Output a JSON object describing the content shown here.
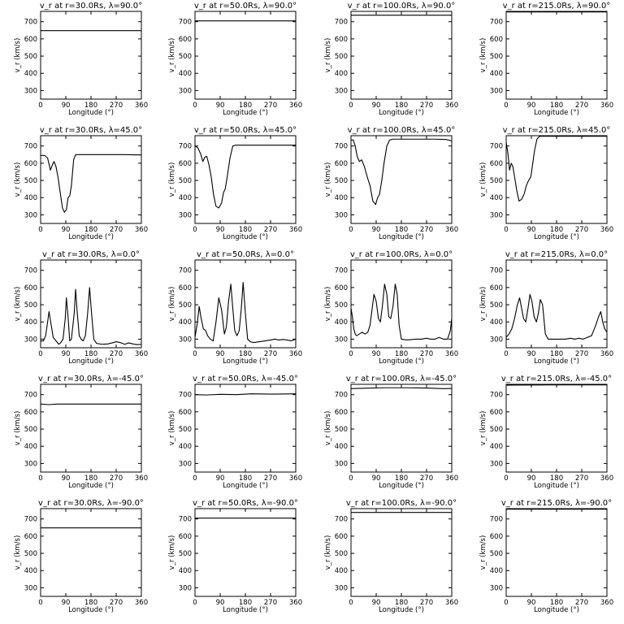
{
  "chart_data": [
    {
      "type": "line",
      "title": "v_r at r=30.0Rs,  λ=90.0°",
      "xlabel": "Longitude (°)",
      "ylabel": "v_r (km/s)",
      "xlim": [
        0,
        360
      ],
      "ylim": [
        250,
        760
      ],
      "xticks": [
        0,
        90,
        180,
        270,
        360
      ],
      "yticks": [
        300,
        400,
        500,
        600,
        700
      ],
      "series": [
        {
          "x": [
            0,
            360
          ],
          "y": [
            648,
            648
          ]
        }
      ]
    },
    {
      "type": "line",
      "title": "v_r at r=50.0Rs,  λ=90.0°",
      "xlabel": "Longitude (°)",
      "ylabel": "v_r (km/s)",
      "xlim": [
        0,
        360
      ],
      "ylim": [
        250,
        760
      ],
      "xticks": [
        0,
        90,
        180,
        270,
        360
      ],
      "yticks": [
        300,
        400,
        500,
        600,
        700
      ],
      "series": [
        {
          "x": [
            0,
            360
          ],
          "y": [
            705,
            705
          ]
        }
      ]
    },
    {
      "type": "line",
      "title": "v_r at r=100.0Rs,  λ=90.0°",
      "xlabel": "Longitude (°)",
      "ylabel": "v_r (km/s)",
      "xlim": [
        0,
        360
      ],
      "ylim": [
        250,
        760
      ],
      "xticks": [
        0,
        90,
        180,
        270,
        360
      ],
      "yticks": [
        300,
        400,
        500,
        600,
        700
      ],
      "series": [
        {
          "x": [
            0,
            360
          ],
          "y": [
            738,
            738
          ]
        }
      ]
    },
    {
      "type": "line",
      "title": "v_r at r=215.0Rs,  λ=90.0°",
      "xlabel": "Longitude (°)",
      "ylabel": "v_r (km/s)",
      "xlim": [
        0,
        360
      ],
      "ylim": [
        250,
        760
      ],
      "xticks": [
        0,
        90,
        180,
        270,
        360
      ],
      "yticks": [
        300,
        400,
        500,
        600,
        700
      ],
      "series": [
        {
          "x": [
            0,
            360
          ],
          "y": [
            757,
            757
          ]
        }
      ]
    },
    {
      "type": "line",
      "title": "v_r at r=30.0Rs,  λ=45.0°",
      "xlabel": "Longitude (°)",
      "ylabel": "v_r (km/s)",
      "xlim": [
        0,
        360
      ],
      "ylim": [
        250,
        760
      ],
      "xticks": [
        0,
        90,
        180,
        270,
        360
      ],
      "yticks": [
        300,
        400,
        500,
        600,
        700
      ],
      "series": [
        {
          "x": [
            0,
            15,
            25,
            35,
            42,
            48,
            55,
            62,
            70,
            78,
            85,
            92,
            98,
            104,
            110,
            118,
            125,
            135,
            150,
            200,
            300,
            360
          ],
          "y": [
            645,
            645,
            630,
            560,
            590,
            610,
            580,
            520,
            430,
            340,
            315,
            330,
            400,
            410,
            470,
            620,
            650,
            650,
            650,
            650,
            650,
            648
          ]
        }
      ]
    },
    {
      "type": "line",
      "title": "v_r at r=50.0Rs,  λ=45.0°",
      "xlabel": "Longitude (°)",
      "ylabel": "v_r (km/s)",
      "xlim": [
        0,
        360
      ],
      "ylim": [
        250,
        760
      ],
      "xticks": [
        0,
        90,
        180,
        270,
        360
      ],
      "yticks": [
        300,
        400,
        500,
        600,
        700
      ],
      "series": [
        {
          "x": [
            0,
            10,
            20,
            28,
            35,
            42,
            50,
            58,
            66,
            75,
            85,
            95,
            102,
            108,
            115,
            125,
            135,
            145,
            200,
            300,
            360
          ],
          "y": [
            700,
            690,
            655,
            610,
            635,
            640,
            590,
            520,
            420,
            350,
            340,
            370,
            430,
            450,
            520,
            630,
            700,
            705,
            705,
            705,
            705
          ]
        }
      ]
    },
    {
      "type": "line",
      "title": "v_r at r=100.0Rs,  λ=45.0°",
      "xlabel": "Longitude (°)",
      "ylabel": "v_r (km/s)",
      "xlim": [
        0,
        360
      ],
      "ylim": [
        250,
        760
      ],
      "xticks": [
        0,
        90,
        180,
        270,
        360
      ],
      "yticks": [
        300,
        400,
        500,
        600,
        700
      ],
      "series": [
        {
          "x": [
            0,
            8,
            15,
            22,
            30,
            38,
            48,
            58,
            68,
            78,
            88,
            95,
            102,
            110,
            118,
            128,
            138,
            150,
            200,
            300,
            340,
            360
          ],
          "y": [
            735,
            735,
            700,
            640,
            610,
            620,
            580,
            520,
            470,
            380,
            360,
            400,
            420,
            500,
            600,
            700,
            735,
            740,
            740,
            740,
            738,
            730
          ]
        }
      ]
    },
    {
      "type": "line",
      "title": "v_r at r=215.0Rs,  λ=45.0°",
      "xlabel": "Longitude (°)",
      "ylabel": "v_r (km/s)",
      "xlim": [
        0,
        360
      ],
      "ylim": [
        250,
        760
      ],
      "xticks": [
        0,
        90,
        180,
        270,
        360
      ],
      "yticks": [
        300,
        400,
        500,
        600,
        700
      ],
      "series": [
        {
          "x": [
            0,
            6,
            12,
            18,
            24,
            30,
            38,
            46,
            55,
            64,
            72,
            80,
            88,
            95,
            102,
            110,
            118,
            125,
            135,
            150,
            200,
            300,
            360
          ],
          "y": [
            720,
            660,
            560,
            600,
            580,
            520,
            440,
            380,
            390,
            420,
            470,
            500,
            520,
            600,
            680,
            740,
            755,
            757,
            757,
            757,
            757,
            757,
            757
          ]
        }
      ]
    },
    {
      "type": "line",
      "title": "v_r at r=30.0Rs,  λ=0.0°",
      "xlabel": "Longitude (°)",
      "ylabel": "v_r (km/s)",
      "xlim": [
        0,
        360
      ],
      "ylim": [
        250,
        760
      ],
      "xticks": [
        0,
        90,
        180,
        270,
        360
      ],
      "yticks": [
        300,
        400,
        500,
        600,
        700
      ],
      "series": [
        {
          "x": [
            0,
            10,
            18,
            25,
            30,
            38,
            45,
            55,
            65,
            72,
            80,
            88,
            92,
            98,
            104,
            110,
            120,
            125,
            130,
            138,
            145,
            152,
            160,
            168,
            175,
            182,
            190,
            200,
            220,
            240,
            255,
            270,
            285,
            300,
            315,
            330,
            345,
            360
          ],
          "y": [
            290,
            290,
            320,
            400,
            460,
            380,
            310,
            290,
            270,
            280,
            300,
            420,
            540,
            430,
            290,
            300,
            450,
            590,
            470,
            320,
            300,
            290,
            320,
            450,
            600,
            450,
            300,
            275,
            270,
            272,
            278,
            285,
            280,
            270,
            278,
            272,
            268,
            270
          ]
        }
      ]
    },
    {
      "type": "line",
      "title": "v_r at r=50.0Rs,  λ=0.0°",
      "xlabel": "Longitude (°)",
      "ylabel": "v_r (km/s)",
      "xlim": [
        0,
        360
      ],
      "ylim": [
        250,
        760
      ],
      "xticks": [
        0,
        90,
        180,
        270,
        360
      ],
      "yticks": [
        300,
        400,
        500,
        600,
        700
      ],
      "series": [
        {
          "x": [
            0,
            8,
            15,
            22,
            30,
            38,
            45,
            55,
            65,
            75,
            85,
            95,
            105,
            112,
            120,
            128,
            135,
            142,
            150,
            158,
            165,
            172,
            180,
            188,
            198,
            210,
            230,
            250,
            270,
            285,
            300,
            315,
            330,
            345,
            360
          ],
          "y": [
            310,
            390,
            490,
            420,
            360,
            350,
            320,
            300,
            290,
            400,
            540,
            470,
            330,
            370,
            520,
            620,
            480,
            350,
            320,
            350,
            470,
            630,
            450,
            300,
            285,
            280,
            285,
            290,
            295,
            300,
            295,
            298,
            295,
            290,
            300
          ]
        }
      ]
    },
    {
      "type": "line",
      "title": "v_r at r=100.0Rs,  λ=0.0°",
      "xlabel": "Longitude (°)",
      "ylabel": "v_r (km/s)",
      "xlim": [
        0,
        360
      ],
      "ylim": [
        250,
        760
      ],
      "xticks": [
        0,
        90,
        180,
        270,
        360
      ],
      "yticks": [
        300,
        400,
        500,
        600,
        700
      ],
      "series": [
        {
          "x": [
            0,
            5,
            10,
            15,
            20,
            30,
            40,
            50,
            60,
            68,
            75,
            82,
            90,
            98,
            105,
            112,
            120,
            128,
            135,
            142,
            150,
            158,
            165,
            172,
            180,
            200,
            230,
            250,
            270,
            285,
            300,
            315,
            330,
            345,
            355,
            360
          ],
          "y": [
            480,
            430,
            360,
            330,
            320,
            330,
            340,
            330,
            340,
            380,
            470,
            560,
            520,
            420,
            400,
            490,
            620,
            560,
            430,
            420,
            490,
            620,
            560,
            380,
            300,
            295,
            300,
            300,
            305,
            300,
            300,
            310,
            300,
            300,
            350,
            420
          ]
        }
      ]
    },
    {
      "type": "line",
      "title": "v_r at r=215.0Rs,  λ=0.0°",
      "xlabel": "Longitude (°)",
      "ylabel": "v_r (km/s)",
      "xlim": [
        0,
        360
      ],
      "ylim": [
        250,
        760
      ],
      "xticks": [
        0,
        90,
        180,
        270,
        360
      ],
      "yticks": [
        300,
        400,
        500,
        600,
        700
      ],
      "series": [
        {
          "x": [
            0,
            10,
            20,
            30,
            40,
            48,
            55,
            62,
            70,
            78,
            85,
            92,
            100,
            108,
            115,
            122,
            130,
            140,
            150,
            170,
            190,
            210,
            230,
            245,
            260,
            275,
            290,
            305,
            320,
            330,
            338,
            345,
            352,
            360
          ],
          "y": [
            310,
            330,
            360,
            420,
            500,
            540,
            480,
            420,
            400,
            480,
            560,
            520,
            430,
            400,
            450,
            530,
            500,
            330,
            300,
            300,
            300,
            300,
            305,
            300,
            305,
            300,
            310,
            320,
            380,
            430,
            460,
            400,
            360,
            340
          ]
        }
      ]
    },
    {
      "type": "line",
      "title": "v_r at r=30.0Rs,  λ=-45.0°",
      "xlabel": "Longitude (°)",
      "ylabel": "v_r (km/s)",
      "xlim": [
        0,
        360
      ],
      "ylim": [
        250,
        760
      ],
      "xticks": [
        0,
        90,
        180,
        270,
        360
      ],
      "yticks": [
        300,
        400,
        500,
        600,
        700
      ],
      "series": [
        {
          "x": [
            0,
            30,
            60,
            120,
            200,
            280,
            360
          ],
          "y": [
            645,
            642,
            645,
            645,
            645,
            645,
            645
          ]
        }
      ]
    },
    {
      "type": "line",
      "title": "v_r at r=50.0Rs,  λ=-45.0°",
      "xlabel": "Longitude (°)",
      "ylabel": "v_r (km/s)",
      "xlim": [
        0,
        360
      ],
      "ylim": [
        250,
        760
      ],
      "xticks": [
        0,
        90,
        180,
        270,
        360
      ],
      "yticks": [
        300,
        400,
        500,
        600,
        700
      ],
      "series": [
        {
          "x": [
            0,
            40,
            90,
            150,
            200,
            280,
            360
          ],
          "y": [
            700,
            698,
            702,
            700,
            705,
            703,
            705
          ]
        }
      ]
    },
    {
      "type": "line",
      "title": "v_r at r=100.0Rs,  λ=-45.0°",
      "xlabel": "Longitude (°)",
      "ylabel": "v_r (km/s)",
      "xlim": [
        0,
        360
      ],
      "ylim": [
        250,
        760
      ],
      "xticks": [
        0,
        90,
        180,
        270,
        360
      ],
      "yticks": [
        300,
        400,
        500,
        600,
        700
      ],
      "series": [
        {
          "x": [
            0,
            60,
            120,
            200,
            280,
            330,
            360
          ],
          "y": [
            735,
            738,
            740,
            740,
            738,
            735,
            736
          ]
        }
      ]
    },
    {
      "type": "line",
      "title": "v_r at r=215.0Rs,  λ=-45.0°",
      "xlabel": "Longitude (°)",
      "ylabel": "v_r (km/s)",
      "xlim": [
        0,
        360
      ],
      "ylim": [
        250,
        760
      ],
      "xticks": [
        0,
        90,
        180,
        270,
        360
      ],
      "yticks": [
        300,
        400,
        500,
        600,
        700
      ],
      "series": [
        {
          "x": [
            0,
            100,
            200,
            300,
            360
          ],
          "y": [
            755,
            756,
            757,
            757,
            757
          ]
        }
      ]
    },
    {
      "type": "line",
      "title": "v_r at r=30.0Rs,  λ=-90.0°",
      "xlabel": "Longitude (°)",
      "ylabel": "v_r (km/s)",
      "xlim": [
        0,
        360
      ],
      "ylim": [
        250,
        760
      ],
      "xticks": [
        0,
        90,
        180,
        270,
        360
      ],
      "yticks": [
        300,
        400,
        500,
        600,
        700
      ],
      "series": [
        {
          "x": [
            0,
            360
          ],
          "y": [
            648,
            648
          ]
        }
      ]
    },
    {
      "type": "line",
      "title": "v_r at r=50.0Rs,  λ=-90.0°",
      "xlabel": "Longitude (°)",
      "ylabel": "v_r (km/s)",
      "xlim": [
        0,
        360
      ],
      "ylim": [
        250,
        760
      ],
      "xticks": [
        0,
        90,
        180,
        270,
        360
      ],
      "yticks": [
        300,
        400,
        500,
        600,
        700
      ],
      "series": [
        {
          "x": [
            0,
            360
          ],
          "y": [
            705,
            705
          ]
        }
      ]
    },
    {
      "type": "line",
      "title": "v_r at r=100.0Rs,  λ=-90.0°",
      "xlabel": "Longitude (°)",
      "ylabel": "v_r (km/s)",
      "xlim": [
        0,
        360
      ],
      "ylim": [
        250,
        760
      ],
      "xticks": [
        0,
        90,
        180,
        270,
        360
      ],
      "yticks": [
        300,
        400,
        500,
        600,
        700
      ],
      "series": [
        {
          "x": [
            0,
            360
          ],
          "y": [
            738,
            738
          ]
        }
      ]
    },
    {
      "type": "line",
      "title": "v_r at r=215.0Rs,  λ=-90.0°",
      "xlabel": "Longitude (°)",
      "ylabel": "v_r (km/s)",
      "xlim": [
        0,
        360
      ],
      "ylim": [
        250,
        760
      ],
      "xticks": [
        0,
        90,
        180,
        270,
        360
      ],
      "yticks": [
        300,
        400,
        500,
        600,
        700
      ],
      "series": [
        {
          "x": [
            0,
            360
          ],
          "y": [
            757,
            757
          ]
        }
      ]
    }
  ]
}
